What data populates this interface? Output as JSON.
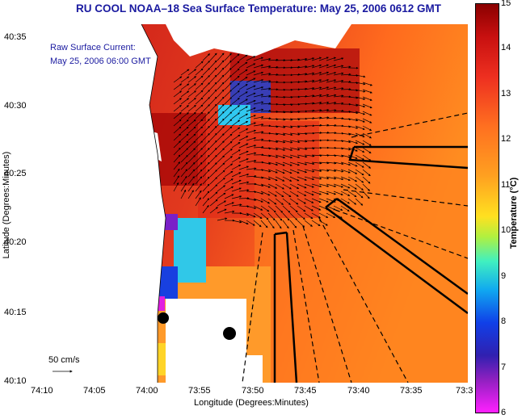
{
  "title": "RU COOL  NOAA–18  Sea Surface Temperature:  May 25, 2006 0612 GMT",
  "legend": {
    "raw_label": "Raw Surface Current:",
    "date_label": "May 25, 2006 06:00 GMT",
    "scale_label": "50 cm/s"
  },
  "axes": {
    "xlabel": "Longitude (Degrees:Minutes)",
    "ylabel": "Latitude (Degrees:Minutes)",
    "x_ticks": [
      "74:10",
      "74:05",
      "74:00",
      "73:55",
      "73:50",
      "73:45",
      "73:40",
      "73:35",
      "73:3"
    ],
    "y_ticks": [
      "40:35",
      "40:30",
      "40:25",
      "40:20",
      "40:15",
      "40:10"
    ]
  },
  "colorbar": {
    "label": "Temperature (°C)",
    "ticks": [
      "15",
      "14",
      "13",
      "12",
      "11",
      "10",
      "9",
      "8",
      "7",
      "6"
    ]
  }
}
